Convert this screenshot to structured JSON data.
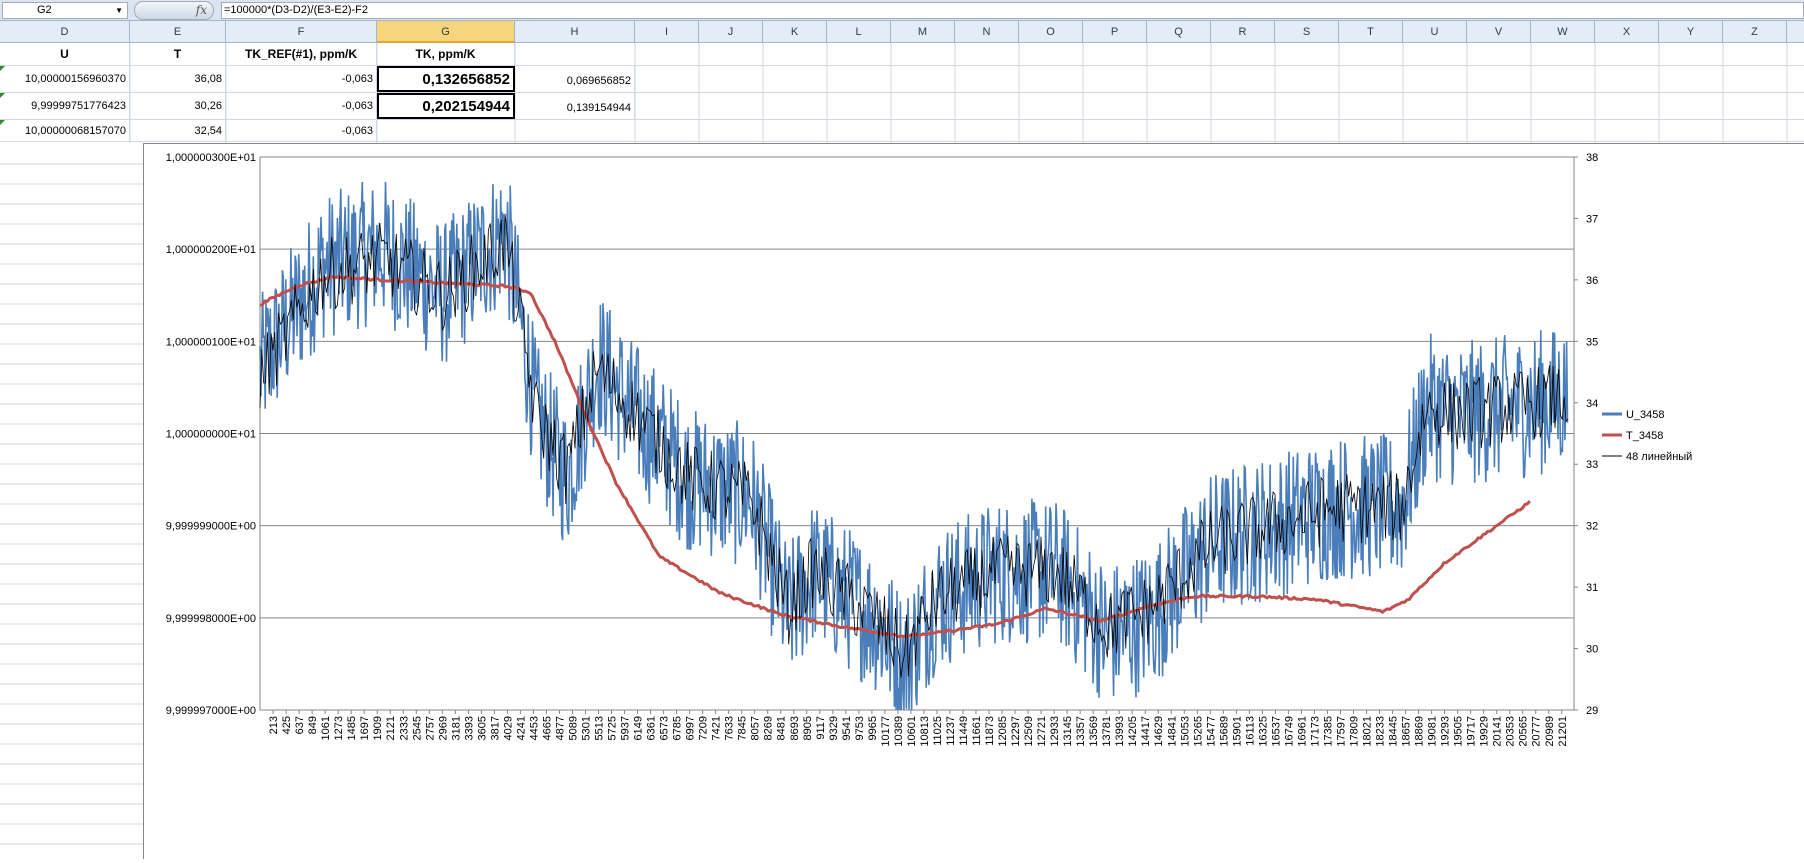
{
  "formula_bar": {
    "name_box": "G2",
    "fx_label": "fx",
    "formula": "=100000*(D3-D2)/(E3-E2)-F2"
  },
  "columns": [
    "D",
    "E",
    "F",
    "G",
    "H",
    "I",
    "J",
    "K",
    "L",
    "M",
    "N",
    "O",
    "P",
    "Q",
    "R",
    "S",
    "T",
    "U",
    "V",
    "W",
    "X",
    "Y",
    "Z"
  ],
  "header_row": {
    "D": "U",
    "E": "T",
    "F": "TK_REF(#1), ppm/K",
    "G": "TK, ppm/K"
  },
  "rows": [
    {
      "D": "10,00000156960370",
      "E": "36,08",
      "F": "-0,063",
      "G": "0,132656852",
      "H": "0,069656852"
    },
    {
      "D": "9,99999751776423",
      "E": "30,26",
      "F": "-0,063",
      "G": "0,202154944",
      "H": "0,139154944"
    },
    {
      "D": "10,00000068157070",
      "E": "32,54",
      "F": "-0,063",
      "G": "",
      "H": ""
    }
  ],
  "chart_data": {
    "type": "line",
    "title": "",
    "y_left_ticks": [
      "1,000000300E+01",
      "1,000000200E+01",
      "1,000000100E+01",
      "1,000000000E+01",
      "9,999999000E+00",
      "9,999998000E+00",
      "9,999997000E+00"
    ],
    "y_left_range": [
      9.999997,
      10.000003
    ],
    "y_right_ticks": [
      "38",
      "37",
      "36",
      "35",
      "34",
      "33",
      "32",
      "31",
      "30",
      "29"
    ],
    "y_right_range": [
      29,
      38
    ],
    "x_ticks": [
      "213",
      "425",
      "637",
      "849",
      "1061",
      "1273",
      "1485",
      "1697",
      "1909",
      "2121",
      "2333",
      "2545",
      "2757",
      "2969",
      "3181",
      "3393",
      "3605",
      "3817",
      "4029",
      "4241",
      "4453",
      "4665",
      "4877",
      "5089",
      "5301",
      "5513",
      "5725",
      "5937",
      "6149",
      "6361",
      "6573",
      "6785",
      "6997",
      "7209",
      "7421",
      "7633",
      "7845",
      "8057",
      "8269",
      "8481",
      "8693",
      "8905",
      "9117",
      "9329",
      "9541",
      "9753",
      "9965",
      "10177",
      "10389",
      "10601",
      "10813",
      "11025",
      "11237",
      "11449",
      "11661",
      "11873",
      "12085",
      "12297",
      "12509",
      "12721",
      "12933",
      "13145",
      "13357",
      "13569",
      "13781",
      "13993",
      "14205",
      "14417",
      "14629",
      "14841",
      "15053",
      "15265",
      "15477",
      "15689",
      "15901",
      "16113",
      "16325",
      "16537",
      "16749",
      "16961",
      "17173",
      "17385",
      "17597",
      "17809",
      "18021",
      "18233",
      "18445",
      "18657",
      "18869",
      "19081",
      "19293",
      "19505",
      "19717",
      "19929",
      "20141",
      "20353",
      "20565",
      "20777",
      "20989",
      "21201"
    ],
    "x_range": [
      0,
      21400
    ],
    "gridlines": true,
    "legend_position": "right",
    "series": [
      {
        "name": "U_3458",
        "axis": "left",
        "color": "#4a7ebb",
        "x": [
          0,
          1000,
          2000,
          3000,
          4000,
          4500,
          5000,
          5500,
          6000,
          7000,
          8000,
          8600,
          9000,
          10000,
          10500,
          11000,
          12000,
          13000,
          13800,
          14500,
          15500,
          16500,
          17500,
          18600,
          19000,
          19500,
          20500,
          21300
        ],
        "values": [
          10.0000007,
          10.0000018,
          10.000002,
          10.0000015,
          10.0000022,
          10.0000002,
          9.9999995,
          10.0000008,
          10.0000003,
          9.9999995,
          9.9999993,
          9.999998,
          9.9999985,
          9.999998,
          9.9999975,
          9.9999982,
          9.9999985,
          9.9999985,
          9.9999978,
          9.999998,
          9.9999988,
          9.999999,
          9.9999992,
          9.9999992,
          10.0000003,
          10.0000002,
          10.0000003,
          10.0000004
        ]
      },
      {
        "name": "T_3458",
        "axis": "right",
        "color": "#c0504d",
        "x": [
          0,
          600,
          1200,
          2000,
          3000,
          4000,
          4400,
          4800,
          5300,
          5800,
          6500,
          7500,
          8500,
          9500,
          10500,
          11000,
          12000,
          12800,
          13700,
          14500,
          15200,
          16200,
          17200,
          18300,
          18700,
          19300,
          20000,
          20700
        ],
        "values": [
          35.6,
          35.9,
          36.05,
          36.0,
          35.95,
          35.9,
          35.8,
          35.0,
          33.8,
          32.7,
          31.5,
          30.9,
          30.55,
          30.35,
          30.2,
          30.25,
          30.4,
          30.65,
          30.45,
          30.7,
          30.85,
          30.85,
          30.8,
          30.6,
          30.8,
          31.4,
          31.9,
          32.4
        ]
      },
      {
        "name": "48 линейный",
        "axis": "left",
        "color": "#000000",
        "x": [
          0,
          1000,
          2000,
          3000,
          4000,
          4500,
          5000,
          5500,
          6000,
          7000,
          8000,
          8600,
          9000,
          10000,
          10500,
          11000,
          12000,
          13000,
          13800,
          14500,
          15500,
          16500,
          17500,
          18600,
          19000,
          19500,
          20500,
          21300
        ],
        "values": [
          10.0000006,
          10.0000017,
          10.0000019,
          10.0000015,
          10.0000021,
          10.0000002,
          9.9999996,
          10.0000007,
          10.0000003,
          9.9999995,
          9.9999993,
          9.9999981,
          9.9999985,
          9.999998,
          9.9999976,
          9.9999982,
          9.9999985,
          9.9999985,
          9.9999979,
          9.9999981,
          9.9999988,
          9.999999,
          9.9999992,
          9.9999992,
          10.0000003,
          10.0000002,
          10.0000003,
          10.0000004
        ]
      }
    ]
  }
}
